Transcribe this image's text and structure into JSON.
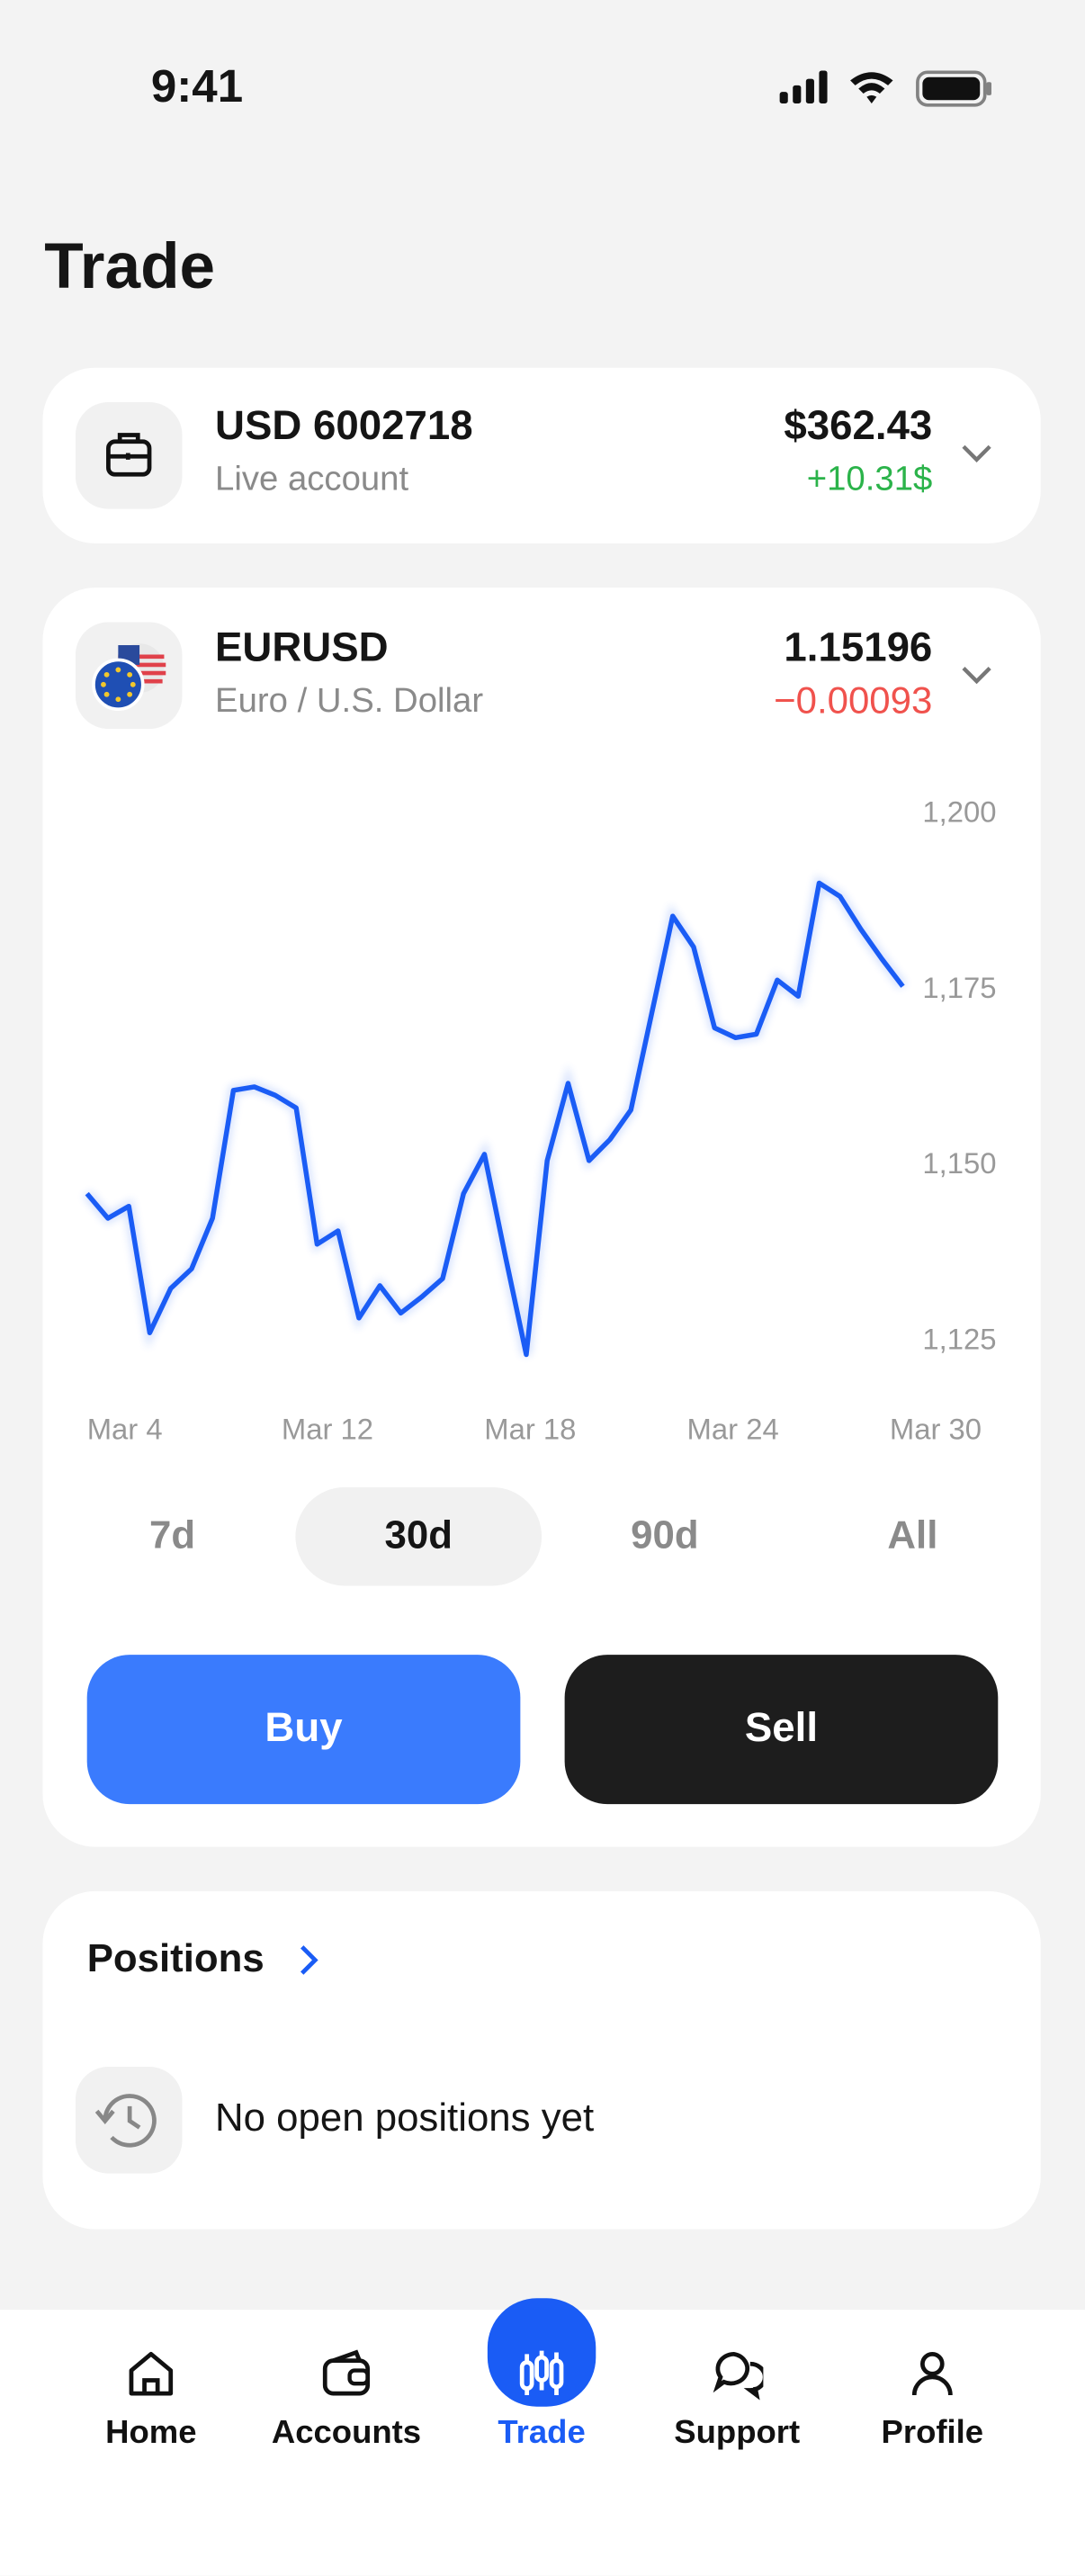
{
  "status_bar": {
    "time": "9:41"
  },
  "header": {
    "title": "Trade"
  },
  "account": {
    "name": "USD 6002718",
    "type": "Live account",
    "balance": "$362.43",
    "change": "+10.31$"
  },
  "instrument": {
    "symbol": "EURUSD",
    "name": "Euro / U.S. Dollar",
    "price": "1.15196",
    "change": "−0.00093"
  },
  "chart_data": {
    "type": "line",
    "series": [
      {
        "color": "#1a5cf5",
        "values": [
          1146.0,
          1142.5,
          1144.2,
          1126.2,
          1132.5,
          1135.3,
          1142.5,
          1160.7,
          1161.2,
          1160.0,
          1158.2,
          1138.8,
          1140.7,
          1128.3,
          1132.9,
          1129.0,
          1131.3,
          1133.9,
          1146.0,
          1151.6,
          1137.1,
          1123.1,
          1150.7,
          1161.7,
          1150.7,
          1153.7,
          1157.9,
          1171.7,
          1185.5,
          1181.1,
          1169.6,
          1168.2,
          1168.7,
          1176.4,
          1174.1,
          1190.2,
          1188.3,
          1183.6,
          1179.4,
          1175.5
        ]
      }
    ],
    "ylim": [
      1120,
      1205
    ],
    "yticks": [
      {
        "value": 1200,
        "label": "1,200"
      },
      {
        "value": 1175,
        "label": "1,175"
      },
      {
        "value": 1150,
        "label": "1,150"
      },
      {
        "value": 1125,
        "label": "1,125"
      }
    ],
    "x_labels": [
      "Mar 4",
      "Mar 12",
      "Mar 18",
      "Mar 24",
      "Mar 30"
    ],
    "grid": false
  },
  "periods": {
    "items": [
      "7d",
      "30d",
      "90d",
      "All"
    ],
    "selected": 1
  },
  "actions": {
    "buy": "Buy",
    "sell": "Sell"
  },
  "positions": {
    "title": "Positions",
    "empty": "No open positions yet"
  },
  "nav": {
    "items": [
      "Home",
      "Accounts",
      "Trade",
      "Support",
      "Profile"
    ],
    "active": 2
  }
}
